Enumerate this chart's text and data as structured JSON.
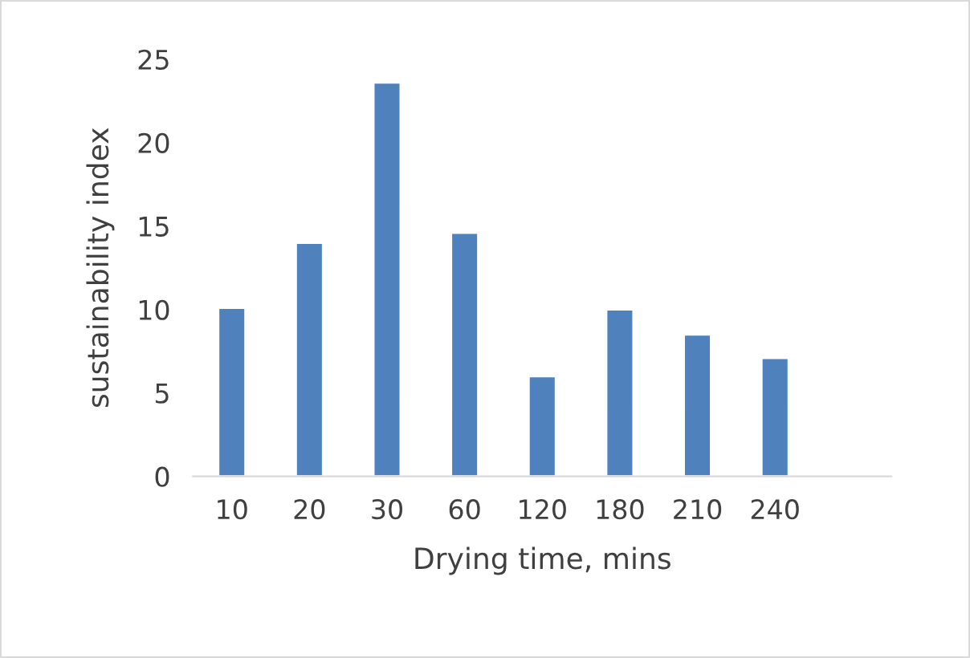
{
  "chart_data": {
    "type": "bar",
    "xlabel": "Drying time, mins",
    "ylabel": "sustainability index",
    "categories": [
      "10",
      "20",
      "30",
      "60",
      "120",
      "180",
      "210",
      "240",
      null
    ],
    "values": [
      10.1,
      14.0,
      23.6,
      14.6,
      6.0,
      10.0,
      8.5,
      7.1,
      null
    ],
    "color": "#4f81bd",
    "ylim": [
      0,
      25
    ],
    "yticks": [
      0,
      5,
      10,
      15,
      20,
      25
    ],
    "grid": false,
    "legend": false
  }
}
